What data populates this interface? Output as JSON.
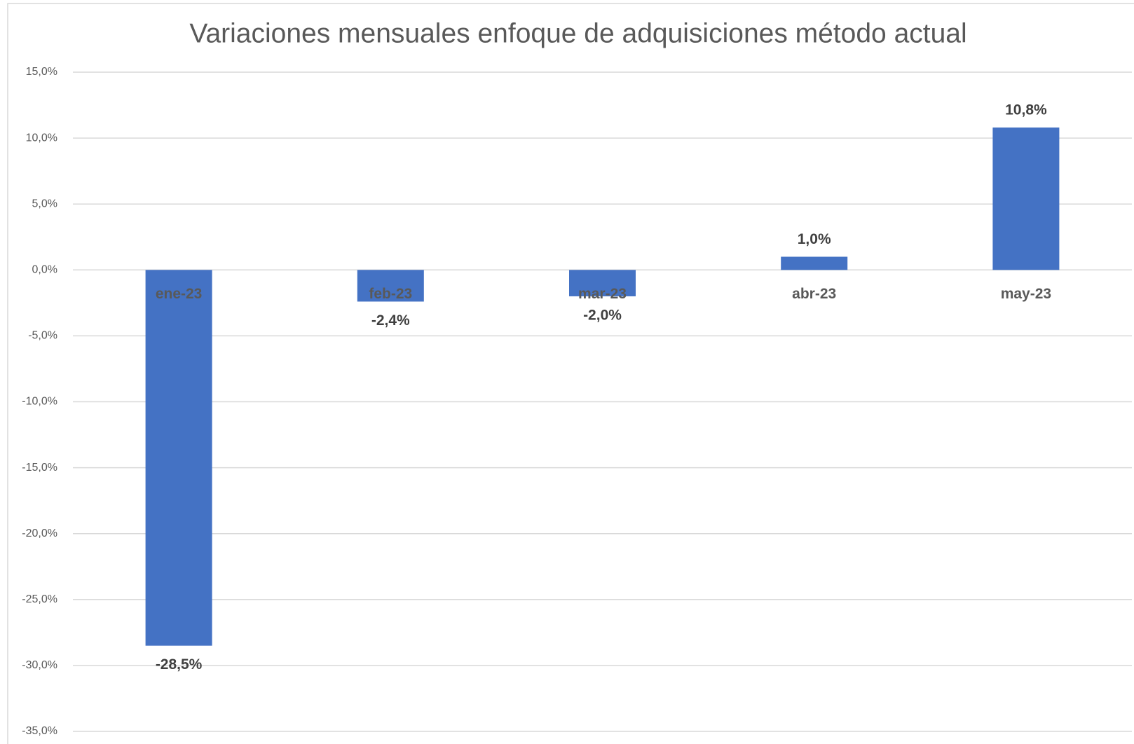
{
  "chart_data": {
    "type": "bar",
    "title": "Variaciones mensuales enfoque de adquisiciones método actual",
    "categories": [
      "ene-23",
      "feb-23",
      "mar-23",
      "abr-23",
      "may-23"
    ],
    "values": [
      -28.5,
      -2.4,
      -2.0,
      1.0,
      10.8
    ],
    "value_labels": [
      "-28,5%",
      "-2,4%",
      "-2,0%",
      "1,0%",
      "10,8%"
    ],
    "color": "#4472c4",
    "ylim": [
      -35,
      15
    ],
    "yticks": [
      {
        "value": 15,
        "label": "15,0%"
      },
      {
        "value": 10,
        "label": "10,0%"
      },
      {
        "value": 5,
        "label": "5,0%"
      },
      {
        "value": 0,
        "label": "0,0%"
      },
      {
        "value": -5,
        "label": "-5,0%"
      },
      {
        "value": -10,
        "label": "-10,0%"
      },
      {
        "value": -15,
        "label": "-15,0%"
      },
      {
        "value": -20,
        "label": "-20,0%"
      },
      {
        "value": -25,
        "label": "-25,0%"
      },
      {
        "value": -30,
        "label": "-30,0%"
      },
      {
        "value": -35,
        "label": "-35,0%"
      }
    ],
    "grid": true
  }
}
